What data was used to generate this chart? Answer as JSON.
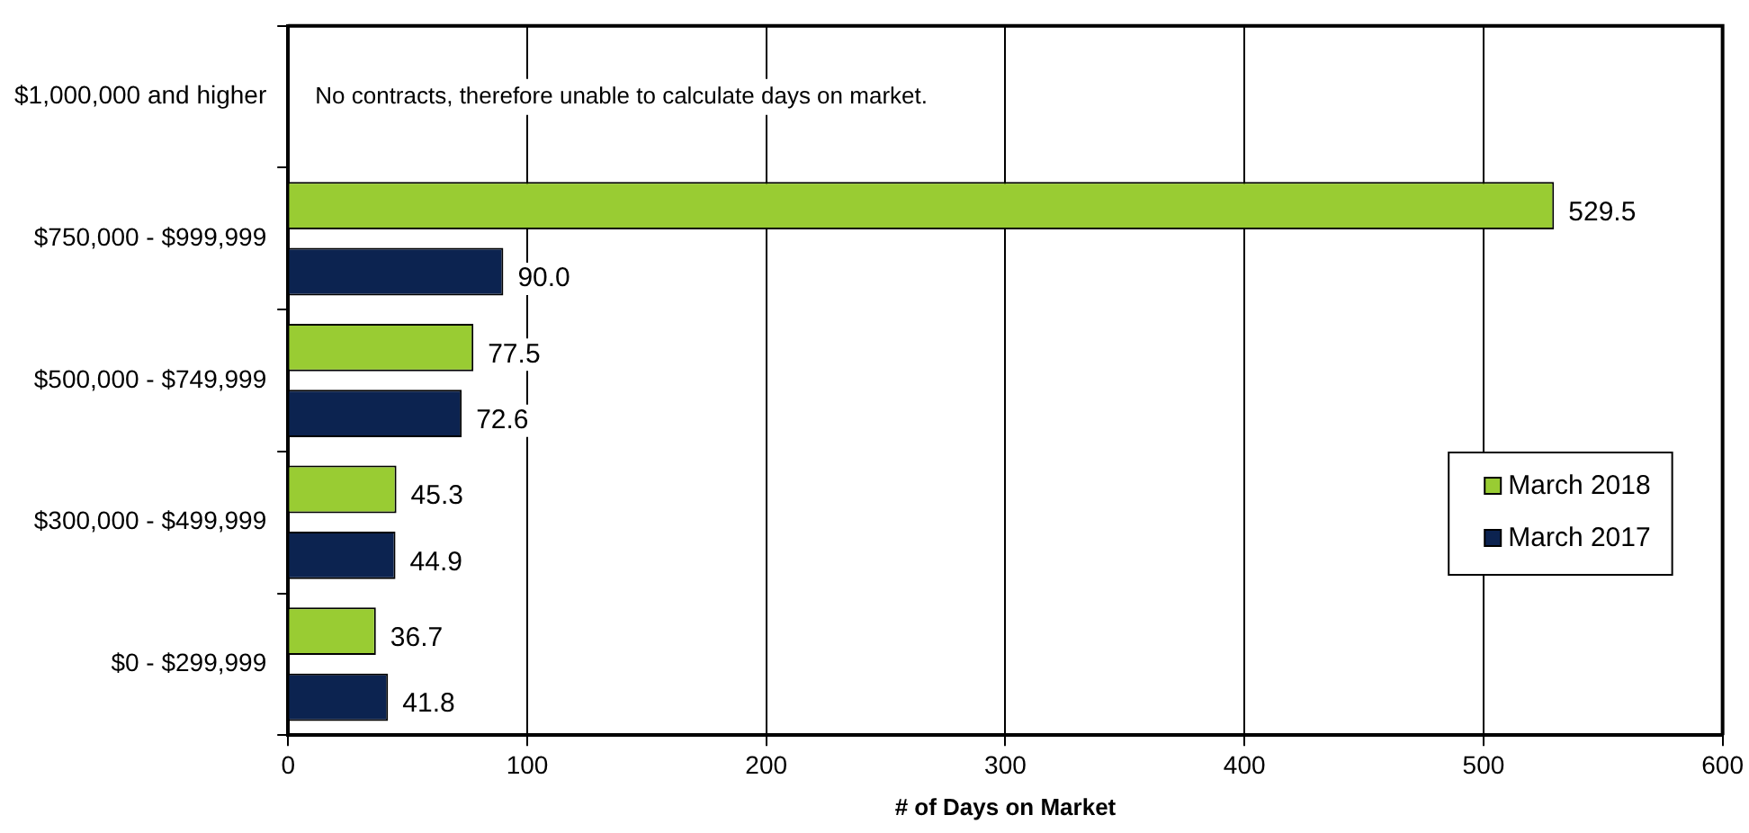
{
  "chart_data": {
    "type": "bar",
    "orientation": "horizontal",
    "xlabel": "# of Days on Market",
    "categories": [
      "$1,000,000 and higher",
      "$750,000 - $999,999",
      "$500,000 - $749,999",
      "$300,000 - $499,999",
      "$0 - $299,999"
    ],
    "series": [
      {
        "name": "March 2018",
        "color": "#99cc33",
        "values": [
          null,
          529.5,
          77.5,
          45.3,
          36.7
        ]
      },
      {
        "name": "March 2017",
        "color": "#0c2350",
        "values": [
          null,
          90.0,
          72.6,
          44.9,
          41.8
        ]
      }
    ],
    "value_labels": [
      [
        null,
        "529.5",
        "77.5",
        "45.3",
        "36.7"
      ],
      [
        null,
        "90.0",
        "72.6",
        "44.9",
        "41.8"
      ]
    ],
    "xlim": [
      0,
      600
    ],
    "xticks": [
      0,
      100,
      200,
      300,
      400,
      500,
      600
    ],
    "grid": "x",
    "legend": "right",
    "annotations": [
      "No contracts, therefore unable to calculate days on market."
    ]
  }
}
